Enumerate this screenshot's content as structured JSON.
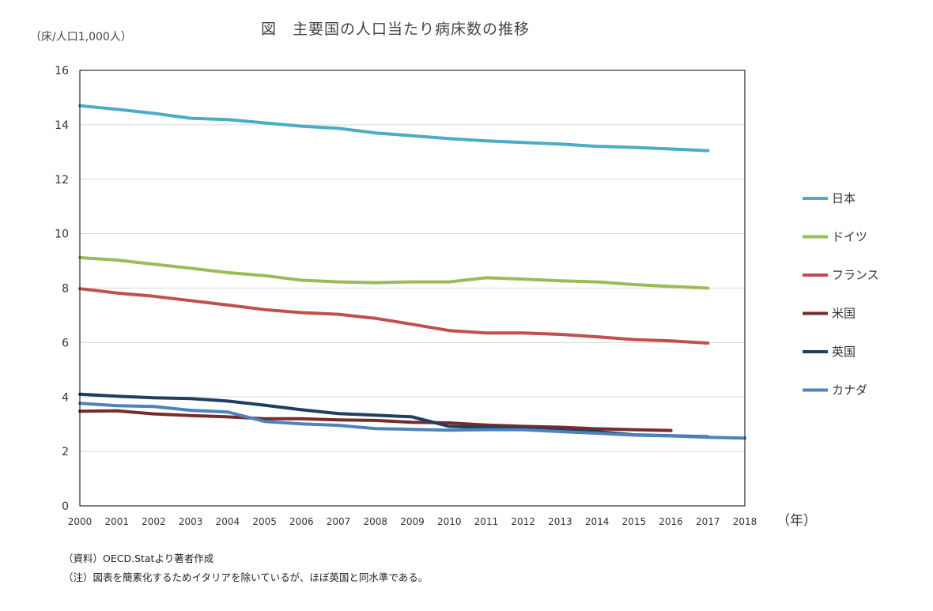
{
  "title": "図　主要国の人口当たり病床数の推移",
  "ylabel": "（床/人口1,000人）",
  "xlabel": "（年）",
  "source_note": "（資料）OECD.Statより著者作成",
  "footnote": "（注）図表を簡素化するためイタリアを除いているが、ほぼ英国と同水準である。",
  "chart_data": {
    "type": "line",
    "title": "図　主要国の人口当たり病床数の推移",
    "xlabel": "（年）",
    "ylabel": "（床/人口1,000人）",
    "x": [
      2000,
      2001,
      2002,
      2003,
      2004,
      2005,
      2006,
      2007,
      2008,
      2009,
      2010,
      2011,
      2012,
      2013,
      2014,
      2015,
      2016,
      2017,
      2018
    ],
    "xlim": [
      2000,
      2018
    ],
    "ylim": [
      0,
      16
    ],
    "yticks": [
      0,
      2,
      4,
      6,
      8,
      10,
      12,
      14,
      16
    ],
    "grid": "horizontal",
    "legend_position": "right",
    "series": [
      {
        "name": "日本",
        "color": "#4bacc6",
        "values": [
          14.7,
          14.57,
          14.42,
          14.24,
          14.19,
          14.07,
          13.95,
          13.87,
          13.7,
          13.6,
          13.49,
          13.41,
          13.35,
          13.29,
          13.21,
          13.17,
          13.11,
          13.05,
          null
        ]
      },
      {
        "name": "ドイツ",
        "color": "#9bbb59",
        "values": [
          9.12,
          9.03,
          8.88,
          8.73,
          8.57,
          8.46,
          8.29,
          8.23,
          8.2,
          8.23,
          8.23,
          8.38,
          8.33,
          8.27,
          8.23,
          8.13,
          8.06,
          8.0,
          null
        ]
      },
      {
        "name": "フランス",
        "color": "#c0504d",
        "values": [
          7.98,
          7.82,
          7.7,
          7.54,
          7.38,
          7.21,
          7.1,
          7.04,
          6.89,
          6.67,
          6.44,
          6.35,
          6.35,
          6.3,
          6.21,
          6.11,
          6.06,
          5.98,
          null
        ]
      },
      {
        "name": "米国",
        "color": "#772c2a",
        "values": [
          3.48,
          3.49,
          3.38,
          3.32,
          3.27,
          3.2,
          3.2,
          3.16,
          3.14,
          3.07,
          3.05,
          2.97,
          2.92,
          2.89,
          2.83,
          2.8,
          2.77,
          null,
          null
        ]
      },
      {
        "name": "英国",
        "color": "#1f3f60",
        "values": [
          4.1,
          4.03,
          3.97,
          3.94,
          3.85,
          3.7,
          3.53,
          3.39,
          3.33,
          3.27,
          2.92,
          2.88,
          2.85,
          2.78,
          2.73,
          2.61,
          2.58,
          2.54,
          null
        ]
      },
      {
        "name": "カナダ",
        "color": "#4f81bd",
        "values": [
          3.77,
          3.68,
          3.65,
          3.51,
          3.45,
          3.1,
          3.01,
          2.96,
          2.84,
          2.81,
          2.78,
          2.8,
          2.8,
          2.73,
          2.67,
          2.6,
          2.57,
          2.52,
          2.49
        ]
      }
    ]
  }
}
